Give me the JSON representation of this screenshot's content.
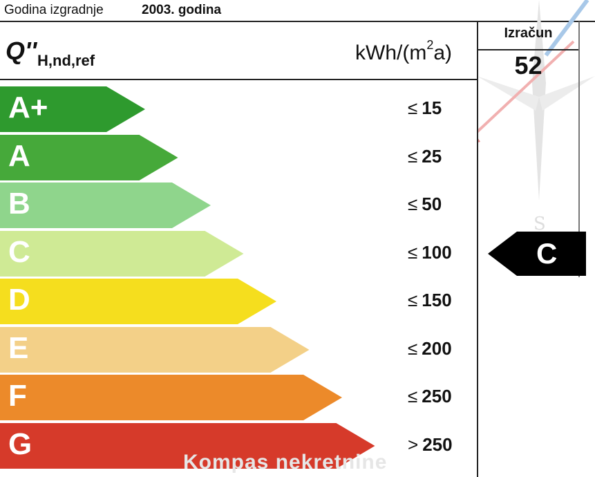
{
  "header": {
    "year_label": "Godina izgradnje",
    "year_value": "2003. godina"
  },
  "table": {
    "q_symbol": "Q''",
    "q_subscript": "H,nd,ref",
    "unit_main": "kWh/(m",
    "unit_sup": "2",
    "unit_end": "a)",
    "calc_label": "Izračun",
    "calc_value": "52"
  },
  "classes": [
    {
      "letter": "A+",
      "symbol": "≤",
      "threshold": "15",
      "color": "#2e9a2e"
    },
    {
      "letter": "A",
      "symbol": "≤",
      "threshold": "25",
      "color": "#46a93a"
    },
    {
      "letter": "B",
      "symbol": "≤",
      "threshold": "50",
      "color": "#8fd58c"
    },
    {
      "letter": "C",
      "symbol": "≤",
      "threshold": "100",
      "color": "#cfea95"
    },
    {
      "letter": "D",
      "symbol": "≤",
      "threshold": "150",
      "color": "#f5de1e"
    },
    {
      "letter": "E",
      "symbol": "≤",
      "threshold": "200",
      "color": "#f3d088"
    },
    {
      "letter": "F",
      "symbol": "≤",
      "threshold": "250",
      "color": "#ec8a2a"
    },
    {
      "letter": "G",
      "symbol": ">",
      "threshold": "250",
      "color": "#d63a2a"
    }
  ],
  "result": {
    "letter": "C",
    "color": "#000000"
  },
  "compass": {
    "letter": "S",
    "arrow_color": "#e88a8a"
  },
  "watermark": "Kompas nekretnine"
}
